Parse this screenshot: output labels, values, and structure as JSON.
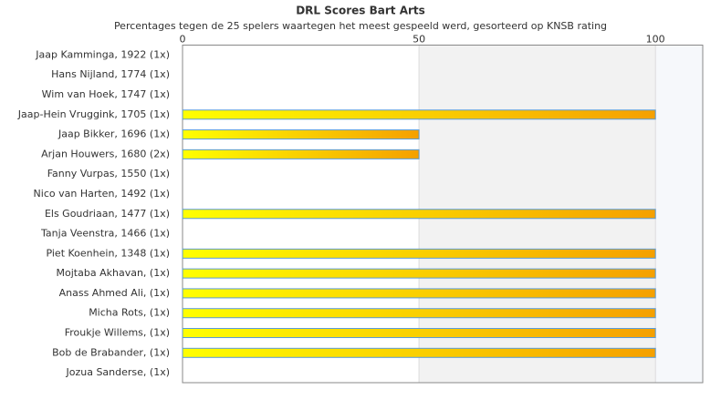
{
  "chart_data": {
    "type": "bar",
    "orientation": "horizontal",
    "title": "DRL Scores Bart Arts",
    "subtitle": "Percentages tegen de 25 spelers waartegen het meest gespeeld werd, gesorteerd op KNSB rating",
    "categories": [
      "Jaap Kamminga, 1922 (1x)",
      "Hans Nijland, 1774 (1x)",
      "Wim van Hoek, 1747 (1x)",
      "Jaap-Hein Vruggink, 1705 (1x)",
      "Jaap Bikker, 1696 (1x)",
      "Arjan Houwers, 1680 (2x)",
      "Fanny Vurpas, 1550 (1x)",
      "Nico van Harten, 1492 (1x)",
      "Els Goudriaan, 1477 (1x)",
      "Tanja Veenstra, 1466 (1x)",
      "Piet Koenhein, 1348 (1x)",
      "Mojtaba Akhavan,  (1x)",
      "Anass Ahmed Ali,  (1x)",
      "Micha Rots,  (1x)",
      "Froukje Willems,  (1x)",
      "Bob de Brabander,  (1x)",
      "Jozua Sanderse,  (1x)"
    ],
    "values": [
      0,
      0,
      0,
      100,
      50,
      50,
      0,
      0,
      100,
      0,
      100,
      100,
      100,
      100,
      100,
      100,
      0
    ],
    "xlim": [
      0,
      110
    ],
    "xticks": [
      0,
      50,
      100
    ]
  }
}
